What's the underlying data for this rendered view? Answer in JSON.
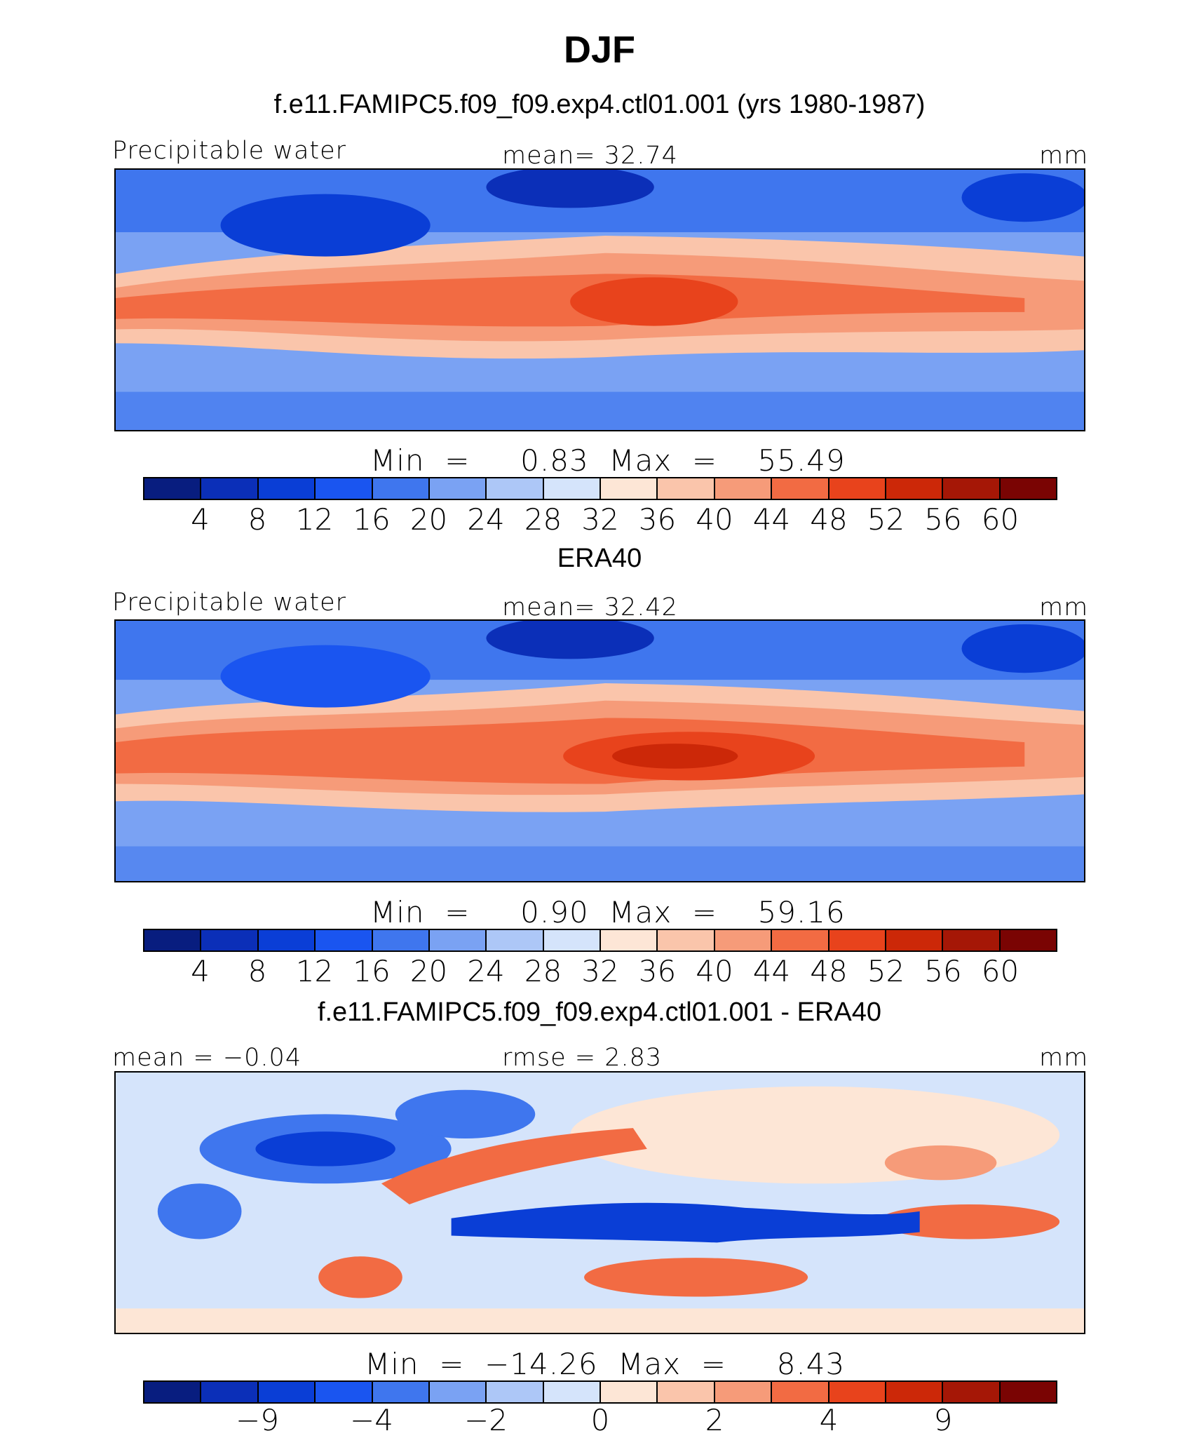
{
  "figure": {
    "season": "DJF"
  },
  "colors": {
    "abs_levels": [
      "#081d7f",
      "#0b2fb8",
      "#0a3ed6",
      "#1a55f0",
      "#3f76ee",
      "#7aa2f3",
      "#adc7f7",
      "#d5e4fb",
      "#fde6d6",
      "#fac5ab",
      "#f69b79",
      "#f26b43",
      "#e8431c",
      "#cc2808",
      "#a51706",
      "#7a0403"
    ],
    "diff_levels": [
      "#081d7f",
      "#0b2fb8",
      "#0a3ed6",
      "#1a55f0",
      "#3f76ee",
      "#7aa2f3",
      "#adc7f7",
      "#d5e4fb",
      "#fde6d6",
      "#fac5ab",
      "#f69b79",
      "#f26b43",
      "#e8431c",
      "#cc2808",
      "#a51706",
      "#7a0403"
    ]
  },
  "chart_data": [
    {
      "type": "heatmap",
      "title": "f.e11.FAMIPC5.f09_f09.exp4.ctl01.001 (yrs 1980-1987)",
      "left_label": "Precipitable water",
      "center_label": "mean=   32.74",
      "units": "mm",
      "min_max": "Min  =     0.83  Max  =    55.49",
      "colorbar_ticks": [
        "4",
        "8",
        "12",
        "16",
        "20",
        "24",
        "28",
        "32",
        "36",
        "40",
        "44",
        "48",
        "52",
        "56",
        "60"
      ],
      "mean": 32.74,
      "min": 0.83,
      "max": 55.49
    },
    {
      "type": "heatmap",
      "title": "ERA40",
      "left_label": "Precipitable water",
      "center_label": "mean=   32.42",
      "units": "mm",
      "min_max": "Min  =     0.90  Max  =    59.16",
      "colorbar_ticks": [
        "4",
        "8",
        "12",
        "16",
        "20",
        "24",
        "28",
        "32",
        "36",
        "40",
        "44",
        "48",
        "52",
        "56",
        "60"
      ],
      "mean": 32.42,
      "min": 0.9,
      "max": 59.16
    },
    {
      "type": "heatmap",
      "title": "f.e11.FAMIPC5.f09_f09.exp4.ctl01.001 - ERA40",
      "left_label": "mean =   −0.04",
      "center_label": "rmse =    2.83",
      "units": "mm",
      "min_max": "Min  =  −14.26  Max  =     8.43",
      "colorbar_ticks": [
        "−9",
        "−4",
        "−2",
        "0",
        "2",
        "4",
        "9"
      ],
      "mean": -0.04,
      "rmse": 2.83,
      "min": -14.26,
      "max": 8.43
    }
  ]
}
